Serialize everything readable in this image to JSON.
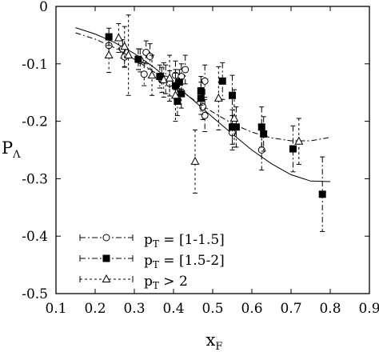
{
  "chart_data": {
    "type": "scatter",
    "title": "",
    "xlabel": {
      "main": "x",
      "sub": "F"
    },
    "ylabel": {
      "main": "P",
      "sub": "Λ"
    },
    "xlim": [
      0.1,
      0.9
    ],
    "ylim": [
      -0.5,
      0
    ],
    "xticks": [
      {
        "value": 0.1,
        "label": "0.1"
      },
      {
        "value": 0.2,
        "label": "0.2"
      },
      {
        "value": 0.3,
        "label": "0.3"
      },
      {
        "value": 0.4,
        "label": "0.4"
      },
      {
        "value": 0.5,
        "label": "0.5"
      },
      {
        "value": 0.6,
        "label": "0.6"
      },
      {
        "value": 0.7,
        "label": "0.7"
      },
      {
        "value": 0.8,
        "label": "0.8"
      },
      {
        "value": 0.9,
        "label": "0.9"
      }
    ],
    "yticks": [
      {
        "value": 0,
        "label": "0"
      },
      {
        "value": -0.1,
        "label": "-0.1"
      },
      {
        "value": -0.2,
        "label": "-0.2"
      },
      {
        "value": -0.3,
        "label": "-0.3"
      },
      {
        "value": -0.4,
        "label": "-0.4"
      },
      {
        "value": -0.5,
        "label": "-0.5"
      }
    ],
    "grid": false,
    "legend_position": "bottom-left",
    "series": [
      {
        "label_main": "p",
        "label_sub": "T",
        "label_rest": " = [1-1.5]",
        "marker": "open-circle",
        "line_style": "dash-dot",
        "color": "#000000",
        "points": [
          {
            "x": 0.235,
            "y": -0.068,
            "err": 0.018
          },
          {
            "x": 0.27,
            "y": -0.074,
            "err": 0.016
          },
          {
            "x": 0.275,
            "y": -0.088,
            "err": 0.018
          },
          {
            "x": 0.315,
            "y": -0.094,
            "err": 0.02
          },
          {
            "x": 0.325,
            "y": -0.118,
            "err": 0.02
          },
          {
            "x": 0.33,
            "y": -0.08,
            "err": 0.02
          },
          {
            "x": 0.34,
            "y": -0.087,
            "err": 0.022
          },
          {
            "x": 0.37,
            "y": -0.128,
            "err": 0.022
          },
          {
            "x": 0.38,
            "y": -0.127,
            "err": 0.025
          },
          {
            "x": 0.39,
            "y": -0.134,
            "err": 0.022
          },
          {
            "x": 0.405,
            "y": -0.12,
            "err": 0.025
          },
          {
            "x": 0.42,
            "y": -0.122,
            "err": 0.022
          },
          {
            "x": 0.43,
            "y": -0.11,
            "err": 0.025
          },
          {
            "x": 0.475,
            "y": -0.175,
            "err": 0.022
          },
          {
            "x": 0.48,
            "y": -0.19,
            "err": 0.028
          },
          {
            "x": 0.48,
            "y": -0.13,
            "err": 0.028
          },
          {
            "x": 0.55,
            "y": -0.22,
            "err": 0.03
          },
          {
            "x": 0.625,
            "y": -0.25,
            "err": 0.035
          }
        ]
      },
      {
        "label_main": "p",
        "label_sub": "T",
        "label_rest": " = [1.5-2]",
        "marker": "filled-square",
        "line_style": "dash-dot",
        "color": "#000000",
        "points": [
          {
            "x": 0.235,
            "y": -0.053,
            "err": 0.015
          },
          {
            "x": 0.31,
            "y": -0.092,
            "err": 0.018
          },
          {
            "x": 0.365,
            "y": -0.122,
            "err": 0.02
          },
          {
            "x": 0.405,
            "y": -0.138,
            "err": 0.022
          },
          {
            "x": 0.41,
            "y": -0.165,
            "err": 0.025
          },
          {
            "x": 0.415,
            "y": -0.132,
            "err": 0.022
          },
          {
            "x": 0.42,
            "y": -0.152,
            "err": 0.025
          },
          {
            "x": 0.47,
            "y": -0.147,
            "err": 0.025
          },
          {
            "x": 0.47,
            "y": -0.16,
            "err": 0.028
          },
          {
            "x": 0.525,
            "y": -0.13,
            "err": 0.032
          },
          {
            "x": 0.55,
            "y": -0.155,
            "err": 0.035
          },
          {
            "x": 0.55,
            "y": -0.21,
            "err": 0.03
          },
          {
            "x": 0.56,
            "y": -0.21,
            "err": 0.035
          },
          {
            "x": 0.625,
            "y": -0.21,
            "err": 0.035
          },
          {
            "x": 0.63,
            "y": -0.222,
            "err": 0.03
          },
          {
            "x": 0.705,
            "y": -0.248,
            "err": 0.04
          },
          {
            "x": 0.78,
            "y": -0.327,
            "err": 0.065
          }
        ]
      },
      {
        "label_main": "p",
        "label_sub": "T",
        "label_rest": " > 2",
        "marker": "open-triangle",
        "line_style": "dotted",
        "color": "#000000",
        "points": [
          {
            "x": 0.235,
            "y": -0.085,
            "err": 0.03
          },
          {
            "x": 0.26,
            "y": -0.055,
            "err": 0.025
          },
          {
            "x": 0.275,
            "y": -0.07,
            "err": 0.035
          },
          {
            "x": 0.285,
            "y": -0.085,
            "err": 0.07
          },
          {
            "x": 0.345,
            "y": -0.12,
            "err": 0.035
          },
          {
            "x": 0.375,
            "y": -0.128,
            "err": 0.03
          },
          {
            "x": 0.39,
            "y": -0.125,
            "err": 0.04
          },
          {
            "x": 0.405,
            "y": -0.155,
            "err": 0.045
          },
          {
            "x": 0.455,
            "y": -0.27,
            "err": 0.055
          },
          {
            "x": 0.515,
            "y": -0.16,
            "err": 0.055
          },
          {
            "x": 0.555,
            "y": -0.195,
            "err": 0.05
          },
          {
            "x": 0.72,
            "y": -0.235,
            "err": 0.04
          }
        ]
      }
    ],
    "fit_curves": [
      {
        "style": "solid",
        "x": [
          0.15,
          0.2,
          0.25,
          0.3,
          0.35,
          0.4,
          0.45,
          0.5,
          0.55,
          0.6,
          0.65,
          0.7,
          0.75,
          0.8
        ],
        "y": [
          -0.037,
          -0.048,
          -0.063,
          -0.082,
          -0.106,
          -0.134,
          -0.163,
          -0.193,
          -0.222,
          -0.25,
          -0.274,
          -0.293,
          -0.304,
          -0.305
        ]
      },
      {
        "style": "dash-dot",
        "x": [
          0.15,
          0.2,
          0.25,
          0.3,
          0.35,
          0.4,
          0.45,
          0.5,
          0.55,
          0.6,
          0.65,
          0.7,
          0.75,
          0.8
        ],
        "y": [
          -0.046,
          -0.057,
          -0.072,
          -0.092,
          -0.114,
          -0.138,
          -0.162,
          -0.184,
          -0.204,
          -0.219,
          -0.229,
          -0.234,
          -0.234,
          -0.228
        ]
      }
    ]
  }
}
